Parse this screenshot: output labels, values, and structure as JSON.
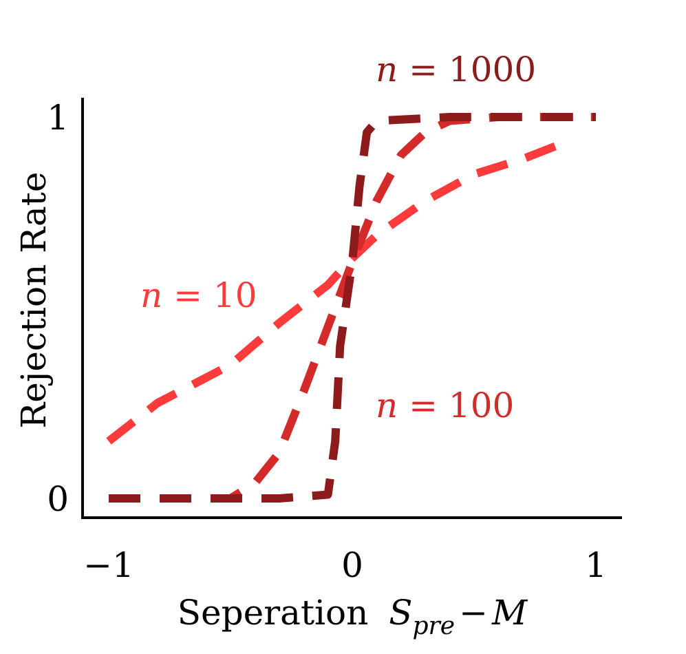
{
  "chart_data": {
    "type": "line",
    "xlabel": "Seperation",
    "xlabel_math": {
      "S": "S",
      "sub": "pre",
      "op": "−",
      "M": "M"
    },
    "ylabel": "Rejection Rate",
    "xlim": [
      -1.1,
      1.1
    ],
    "ylim": [
      -0.05,
      1.05
    ],
    "xticks": [
      -1,
      0,
      1
    ],
    "xtick_labels": [
      "−1",
      "0",
      "1"
    ],
    "yticks": [
      0,
      1
    ],
    "ytick_labels": [
      "0",
      "1"
    ],
    "grid": false,
    "series": [
      {
        "name": "n = 10",
        "label_var": "n",
        "label_rest": " = 10",
        "color": "#ff3a3a",
        "x": [
          -1.0,
          -0.8,
          -0.5,
          -0.3,
          -0.1,
          0.0,
          0.1,
          0.3,
          0.5,
          0.7,
          0.9
        ],
        "y": [
          0.15,
          0.25,
          0.35,
          0.46,
          0.56,
          0.63,
          0.69,
          0.78,
          0.85,
          0.89,
          0.94
        ]
      },
      {
        "name": "n = 100",
        "label_var": "n",
        "label_rest": " = 100",
        "color": "#d42a2a",
        "x": [
          -1.0,
          -0.6,
          -0.5,
          -0.4,
          -0.3,
          -0.2,
          -0.1,
          0.0,
          0.1,
          0.2,
          0.3,
          0.4,
          0.6,
          0.8,
          1.0
        ],
        "y": [
          0.0,
          0.0,
          0.0,
          0.04,
          0.12,
          0.28,
          0.45,
          0.62,
          0.78,
          0.9,
          0.96,
          0.99,
          1.0,
          1.0,
          1.0
        ]
      },
      {
        "name": "n = 1000",
        "label_var": "n",
        "label_rest": " = 1000",
        "color": "#8e1b1b",
        "x": [
          -1.0,
          -0.6,
          -0.3,
          -0.1,
          -0.07,
          -0.05,
          0.0,
          0.03,
          0.06,
          0.1,
          0.4,
          1.0
        ],
        "y": [
          0.0,
          0.0,
          0.0,
          0.01,
          0.15,
          0.4,
          0.62,
          0.82,
          0.96,
          0.99,
          1.0,
          1.0
        ]
      }
    ]
  }
}
